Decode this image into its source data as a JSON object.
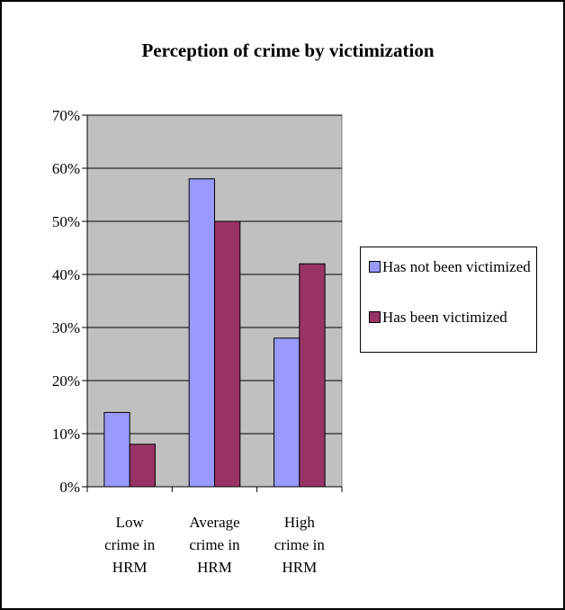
{
  "chart_data": {
    "type": "bar",
    "title": "Perception of crime by victimization",
    "categories": [
      [
        "Low",
        "crime in",
        "HRM"
      ],
      [
        "Average",
        "crime in",
        "HRM"
      ],
      [
        "High",
        "crime in",
        "HRM"
      ]
    ],
    "series": [
      {
        "name": "Has not been victimized",
        "values": [
          14,
          58,
          28
        ],
        "color": "#9999FF"
      },
      {
        "name": "Has been victimized",
        "values": [
          8,
          50,
          42
        ],
        "color": "#993366"
      }
    ],
    "ylim": [
      0,
      70
    ],
    "yticks": [
      "0%",
      "10%",
      "20%",
      "30%",
      "40%",
      "50%",
      "60%",
      "70%"
    ],
    "grid": true,
    "plot_background": "#C0C0C0",
    "legend_position": "right"
  },
  "legend": {
    "item1_label": "Has not been victimized",
    "item2_label": "Has been victimized"
  }
}
